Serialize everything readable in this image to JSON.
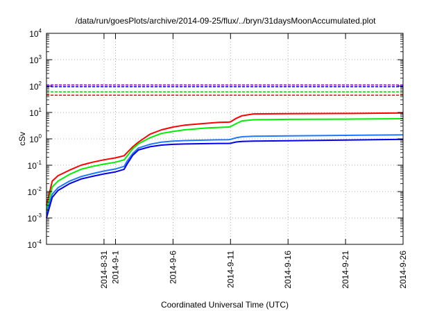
{
  "chart_data": {
    "type": "line",
    "title": "/data/run/goesPlots/archive/2014-09-25/flux/../bryn/31daysMoonAccumulated.plot",
    "xlabel": "Coordinated Universal Time (UTC)",
    "ylabel": "cSv",
    "yscale": "log",
    "ylim": [
      0.0001,
      10000
    ],
    "xlim": [
      "2014-08-26",
      "2014-09-26"
    ],
    "grid": true,
    "legend": "none",
    "x_ticks": [
      "2014-8-31",
      "2014-9-1",
      "2014-9-6",
      "2014-9-11",
      "2014-9-16",
      "2014-9-21",
      "2014-9-26"
    ],
    "y_ticks": [
      {
        "value": 0.0001,
        "base": "10",
        "exp": "-4"
      },
      {
        "value": 0.001,
        "base": "10",
        "exp": "-3"
      },
      {
        "value": 0.01,
        "base": "10",
        "exp": "-2"
      },
      {
        "value": 0.1,
        "base": "10",
        "exp": "-1"
      },
      {
        "value": 1,
        "base": "10",
        "exp": "0"
      },
      {
        "value": 10,
        "base": "10",
        "exp": "1"
      },
      {
        "value": 100,
        "base": "10",
        "exp": "2"
      },
      {
        "value": 1000,
        "base": "10",
        "exp": "3"
      },
      {
        "value": 10000,
        "base": "10",
        "exp": "4"
      }
    ],
    "thresholds": [
      {
        "value": 110,
        "color": "#9400d3"
      },
      {
        "value": 95,
        "color": "#0000ff"
      },
      {
        "value": 60,
        "color": "#00cc00"
      },
      {
        "value": 45,
        "color": "#ff0000"
      }
    ],
    "series": [
      {
        "color": "#ff0000",
        "x": [
          "2014-08-26",
          "2014-08-26T12:00",
          "2014-08-27",
          "2014-08-28",
          "2014-08-29",
          "2014-08-30",
          "2014-08-31",
          "2014-09-01",
          "2014-09-01T18:00",
          "2014-09-02",
          "2014-09-02T12:00",
          "2014-09-03",
          "2014-09-04",
          "2014-09-05",
          "2014-09-06",
          "2014-09-07",
          "2014-09-08",
          "2014-09-09",
          "2014-09-10",
          "2014-09-10T20:00",
          "2014-09-11",
          "2014-09-11T12:00",
          "2014-09-12",
          "2014-09-13",
          "2014-09-16",
          "2014-09-21",
          "2014-09-26"
        ],
        "values": [
          0.003,
          0.025,
          0.04,
          0.065,
          0.1,
          0.13,
          0.16,
          0.19,
          0.23,
          0.3,
          0.5,
          0.75,
          1.5,
          2.2,
          2.8,
          3.3,
          3.6,
          3.9,
          4.2,
          4.3,
          4.4,
          6.0,
          7.5,
          8.8,
          9.0,
          9.2,
          9.5
        ]
      },
      {
        "color": "#00ee00",
        "x": [
          "2014-08-26",
          "2014-08-26T12:00",
          "2014-08-27",
          "2014-08-28",
          "2014-08-29",
          "2014-08-30",
          "2014-08-31",
          "2014-09-01",
          "2014-09-01T18:00",
          "2014-09-02",
          "2014-09-02T12:00",
          "2014-09-03",
          "2014-09-04",
          "2014-09-05",
          "2014-09-06",
          "2014-09-07",
          "2014-09-08",
          "2014-09-09",
          "2014-09-10",
          "2014-09-10T20:00",
          "2014-09-11",
          "2014-09-11T12:00",
          "2014-09-12",
          "2014-09-13",
          "2014-09-16",
          "2014-09-21",
          "2014-09-26"
        ],
        "values": [
          0.002,
          0.015,
          0.025,
          0.045,
          0.07,
          0.09,
          0.11,
          0.13,
          0.16,
          0.22,
          0.42,
          0.65,
          1.1,
          1.6,
          1.9,
          2.2,
          2.4,
          2.6,
          2.7,
          2.8,
          2.9,
          3.8,
          4.8,
          5.3,
          5.5,
          5.6,
          5.8
        ]
      },
      {
        "color": "#1e78ff",
        "x": [
          "2014-08-26",
          "2014-08-26T12:00",
          "2014-08-27",
          "2014-08-28",
          "2014-08-29",
          "2014-08-30",
          "2014-08-31",
          "2014-09-01",
          "2014-09-01T18:00",
          "2014-09-02",
          "2014-09-02T12:00",
          "2014-09-03",
          "2014-09-04",
          "2014-09-05",
          "2014-09-06",
          "2014-09-07",
          "2014-09-08",
          "2014-09-09",
          "2014-09-10",
          "2014-09-10T20:00",
          "2014-09-11",
          "2014-09-11T12:00",
          "2014-09-12",
          "2014-09-13",
          "2014-09-16",
          "2014-09-21",
          "2014-09-26"
        ],
        "values": [
          0.0015,
          0.008,
          0.014,
          0.025,
          0.037,
          0.048,
          0.06,
          0.072,
          0.09,
          0.14,
          0.28,
          0.45,
          0.62,
          0.75,
          0.82,
          0.86,
          0.88,
          0.9,
          0.92,
          0.93,
          0.95,
          1.1,
          1.2,
          1.25,
          1.3,
          1.35,
          1.42
        ]
      },
      {
        "color": "#0000ee",
        "x": [
          "2014-08-26",
          "2014-08-26T12:00",
          "2014-08-27",
          "2014-08-28",
          "2014-08-29",
          "2014-08-30",
          "2014-08-31",
          "2014-09-01",
          "2014-09-01T18:00",
          "2014-09-02",
          "2014-09-02T12:00",
          "2014-09-03",
          "2014-09-04",
          "2014-09-05",
          "2014-09-06",
          "2014-09-07",
          "2014-09-08",
          "2014-09-09",
          "2014-09-10",
          "2014-09-10T20:00",
          "2014-09-11",
          "2014-09-11T12:00",
          "2014-09-12",
          "2014-09-13",
          "2014-09-16",
          "2014-09-21",
          "2014-09-26"
        ],
        "values": [
          0.001,
          0.006,
          0.011,
          0.02,
          0.03,
          0.038,
          0.047,
          0.056,
          0.07,
          0.11,
          0.24,
          0.38,
          0.5,
          0.58,
          0.62,
          0.64,
          0.65,
          0.66,
          0.67,
          0.67,
          0.68,
          0.76,
          0.8,
          0.82,
          0.85,
          0.9,
          0.95
        ]
      }
    ]
  }
}
